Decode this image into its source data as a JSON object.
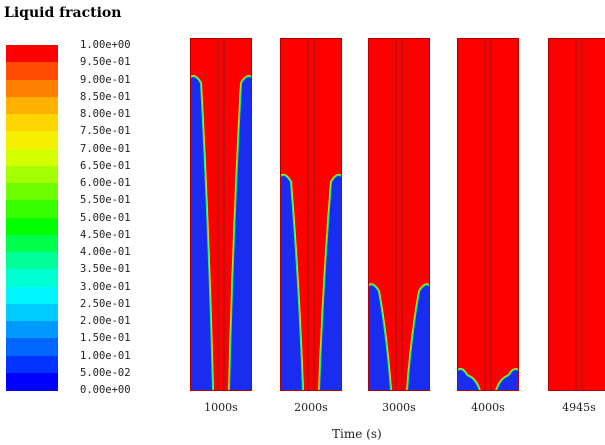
{
  "title": "Liquid fraction",
  "axis_title": "Time (s)",
  "legend": {
    "labels": [
      "1.00e+00",
      "9.50e-01",
      "9.00e-01",
      "8.50e-01",
      "8.00e-01",
      "7.50e-01",
      "7.00e-01",
      "6.50e-01",
      "6.00e-01",
      "5.50e-01",
      "5.00e-01",
      "4.50e-01",
      "4.00e-01",
      "3.50e-01",
      "3.00e-01",
      "2.50e-01",
      "2.00e-01",
      "1.50e-01",
      "1.00e-01",
      "5.00e-02",
      "0.00e+00"
    ],
    "colors": [
      "#ff0000",
      "#ff4c00",
      "#ff7f00",
      "#ffb000",
      "#ffd400",
      "#f5f000",
      "#d4ff00",
      "#a6ff00",
      "#70ff00",
      "#38ff00",
      "#00ff00",
      "#00ff4c",
      "#00ff99",
      "#00ffd0",
      "#00f5ff",
      "#00ccff",
      "#0099ff",
      "#0066ff",
      "#0033ff",
      "#0000ff"
    ]
  },
  "colors": {
    "liquid": "#ff0000",
    "solid": "#1a2cf0",
    "core": "#9a1a1a",
    "transition": "#00ff6a",
    "transition_outer": "#ffdd00"
  },
  "panels": [
    {
      "label": "1000s",
      "solid_fraction": 0.9
    },
    {
      "label": "2000s",
      "solid_fraction": 0.62
    },
    {
      "label": "3000s",
      "solid_fraction": 0.31
    },
    {
      "label": "4000s",
      "solid_fraction": 0.07
    },
    {
      "label": "4945s",
      "solid_fraction": 0.0
    }
  ]
}
